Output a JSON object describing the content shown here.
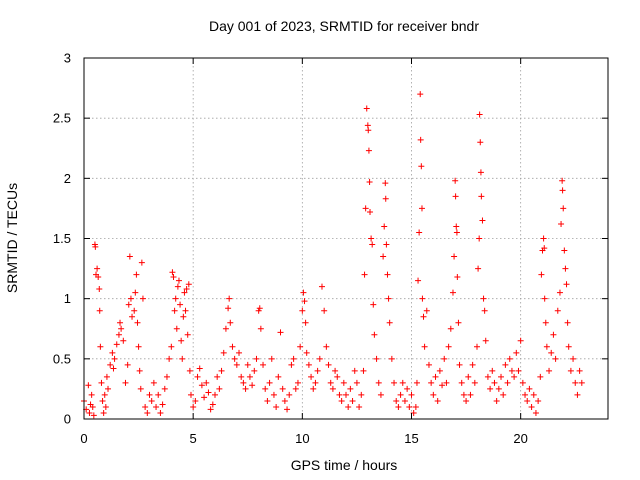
{
  "chart_data": {
    "type": "scatter",
    "title": "Day 001 of 2023, SRMTID for receiver bndr",
    "xlabel": "GPS time / hours",
    "ylabel": "SRMTID / TECUs",
    "xlim": [
      0,
      24
    ],
    "ylim": [
      0,
      3
    ],
    "x_ticks": [
      0,
      5,
      10,
      15,
      20
    ],
    "y_ticks": [
      0,
      0.5,
      1,
      1.5,
      2,
      2.5,
      3
    ],
    "x_tick_labels": [
      "0",
      "5",
      "10",
      "15",
      "20"
    ],
    "y_tick_labels": [
      "0",
      "0.5",
      "1",
      "1.5",
      "2",
      "2.5",
      "3"
    ],
    "grid": true,
    "marker": "+",
    "color": "#ff0000",
    "series": [
      {
        "name": "SRMTID",
        "points": [
          [
            0.0,
            0.15
          ],
          [
            0.1,
            0.08
          ],
          [
            0.2,
            0.28
          ],
          [
            0.25,
            0.05
          ],
          [
            0.3,
            0.12
          ],
          [
            0.35,
            0.2
          ],
          [
            0.4,
            0.1
          ],
          [
            0.45,
            0.03
          ],
          [
            0.5,
            1.45
          ],
          [
            0.52,
            1.43
          ],
          [
            0.55,
            1.2
          ],
          [
            0.6,
            1.25
          ],
          [
            0.65,
            1.18
          ],
          [
            0.7,
            1.08
          ],
          [
            0.72,
            0.9
          ],
          [
            0.75,
            0.6
          ],
          [
            0.8,
            0.3
          ],
          [
            0.85,
            0.15
          ],
          [
            0.9,
            0.05
          ],
          [
            0.95,
            0.2
          ],
          [
            1.0,
            0.1
          ],
          [
            1.05,
            0.35
          ],
          [
            1.1,
            0.25
          ],
          [
            1.2,
            0.45
          ],
          [
            1.3,
            0.55
          ],
          [
            1.35,
            0.42
          ],
          [
            1.4,
            0.5
          ],
          [
            1.5,
            0.62
          ],
          [
            1.6,
            0.7
          ],
          [
            1.65,
            0.8
          ],
          [
            1.7,
            0.75
          ],
          [
            1.8,
            0.65
          ],
          [
            1.9,
            0.3
          ],
          [
            2.0,
            0.45
          ],
          [
            2.05,
            0.95
          ],
          [
            2.1,
            1.35
          ],
          [
            2.15,
            1.0
          ],
          [
            2.2,
            0.85
          ],
          [
            2.3,
            0.9
          ],
          [
            2.35,
            1.05
          ],
          [
            2.4,
            1.2
          ],
          [
            2.45,
            0.8
          ],
          [
            2.5,
            0.6
          ],
          [
            2.55,
            0.4
          ],
          [
            2.6,
            0.25
          ],
          [
            2.65,
            1.3
          ],
          [
            2.7,
            1.0
          ],
          [
            2.8,
            0.1
          ],
          [
            2.9,
            0.05
          ],
          [
            3.0,
            0.2
          ],
          [
            3.1,
            0.15
          ],
          [
            3.2,
            0.3
          ],
          [
            3.3,
            0.1
          ],
          [
            3.4,
            0.2
          ],
          [
            3.5,
            0.05
          ],
          [
            3.6,
            0.12
          ],
          [
            3.7,
            0.25
          ],
          [
            3.8,
            0.35
          ],
          [
            3.9,
            0.5
          ],
          [
            4.0,
            0.6
          ],
          [
            4.05,
            1.22
          ],
          [
            4.1,
            1.18
          ],
          [
            4.15,
            0.9
          ],
          [
            4.2,
            1.0
          ],
          [
            4.25,
            0.75
          ],
          [
            4.3,
            1.1
          ],
          [
            4.35,
            1.15
          ],
          [
            4.4,
            0.95
          ],
          [
            4.45,
            0.65
          ],
          [
            4.5,
            0.5
          ],
          [
            4.55,
            0.85
          ],
          [
            4.6,
            1.05
          ],
          [
            4.65,
            0.9
          ],
          [
            4.7,
            1.08
          ],
          [
            4.75,
            0.7
          ],
          [
            4.8,
            1.12
          ],
          [
            4.85,
            0.4
          ],
          [
            4.9,
            0.2
          ],
          [
            5.0,
            0.1
          ],
          [
            5.1,
            0.15
          ],
          [
            5.2,
            0.35
          ],
          [
            5.3,
            0.42
          ],
          [
            5.4,
            0.28
          ],
          [
            5.5,
            0.18
          ],
          [
            5.6,
            0.3
          ],
          [
            5.7,
            0.22
          ],
          [
            5.8,
            0.08
          ],
          [
            5.9,
            0.12
          ],
          [
            6.0,
            0.2
          ],
          [
            6.1,
            0.35
          ],
          [
            6.2,
            0.25
          ],
          [
            6.3,
            0.4
          ],
          [
            6.4,
            0.55
          ],
          [
            6.5,
            0.75
          ],
          [
            6.6,
            0.92
          ],
          [
            6.65,
            1.0
          ],
          [
            6.7,
            0.8
          ],
          [
            6.8,
            0.6
          ],
          [
            6.9,
            0.5
          ],
          [
            7.0,
            0.45
          ],
          [
            7.1,
            0.55
          ],
          [
            7.2,
            0.35
          ],
          [
            7.3,
            0.3
          ],
          [
            7.4,
            0.25
          ],
          [
            7.5,
            0.45
          ],
          [
            7.6,
            0.35
          ],
          [
            7.7,
            0.28
          ],
          [
            7.8,
            0.4
          ],
          [
            7.9,
            0.5
          ],
          [
            8.0,
            0.9
          ],
          [
            8.05,
            0.92
          ],
          [
            8.1,
            0.75
          ],
          [
            8.2,
            0.45
          ],
          [
            8.3,
            0.25
          ],
          [
            8.4,
            0.15
          ],
          [
            8.5,
            0.3
          ],
          [
            8.6,
            0.5
          ],
          [
            8.7,
            0.2
          ],
          [
            8.8,
            0.1
          ],
          [
            8.9,
            0.35
          ],
          [
            9.0,
            0.72
          ],
          [
            9.1,
            0.25
          ],
          [
            9.2,
            0.15
          ],
          [
            9.3,
            0.08
          ],
          [
            9.4,
            0.2
          ],
          [
            9.5,
            0.45
          ],
          [
            9.6,
            0.5
          ],
          [
            9.7,
            0.25
          ],
          [
            9.8,
            0.3
          ],
          [
            9.9,
            0.6
          ],
          [
            10.0,
            0.9
          ],
          [
            10.05,
            1.05
          ],
          [
            10.1,
            0.98
          ],
          [
            10.15,
            0.8
          ],
          [
            10.2,
            0.55
          ],
          [
            10.3,
            0.45
          ],
          [
            10.4,
            0.35
          ],
          [
            10.5,
            0.25
          ],
          [
            10.6,
            0.3
          ],
          [
            10.7,
            0.4
          ],
          [
            10.8,
            0.5
          ],
          [
            10.9,
            1.1
          ],
          [
            11.0,
            0.9
          ],
          [
            11.1,
            0.6
          ],
          [
            11.2,
            0.45
          ],
          [
            11.3,
            0.3
          ],
          [
            11.4,
            0.25
          ],
          [
            11.5,
            0.4
          ],
          [
            11.6,
            0.35
          ],
          [
            11.7,
            0.2
          ],
          [
            11.8,
            0.15
          ],
          [
            11.9,
            0.3
          ],
          [
            12.0,
            0.2
          ],
          [
            12.1,
            0.1
          ],
          [
            12.2,
            0.25
          ],
          [
            12.3,
            0.15
          ],
          [
            12.4,
            0.4
          ],
          [
            12.5,
            0.3
          ],
          [
            12.6,
            0.1
          ],
          [
            12.7,
            0.2
          ],
          [
            12.8,
            0.4
          ],
          [
            12.85,
            1.2
          ],
          [
            12.9,
            1.75
          ],
          [
            12.95,
            2.58
          ],
          [
            13.0,
            2.44
          ],
          [
            13.02,
            2.4
          ],
          [
            13.05,
            2.23
          ],
          [
            13.08,
            1.97
          ],
          [
            13.1,
            1.72
          ],
          [
            13.15,
            1.5
          ],
          [
            13.2,
            1.45
          ],
          [
            13.25,
            0.95
          ],
          [
            13.3,
            0.7
          ],
          [
            13.4,
            0.5
          ],
          [
            13.5,
            0.3
          ],
          [
            13.6,
            0.2
          ],
          [
            13.7,
            1.35
          ],
          [
            13.75,
            1.6
          ],
          [
            13.8,
            1.96
          ],
          [
            13.82,
            1.83
          ],
          [
            13.85,
            1.45
          ],
          [
            13.9,
            1.2
          ],
          [
            13.95,
            1.0
          ],
          [
            14.0,
            0.8
          ],
          [
            14.1,
            0.5
          ],
          [
            14.2,
            0.3
          ],
          [
            14.3,
            0.15
          ],
          [
            14.4,
            0.1
          ],
          [
            14.5,
            0.2
          ],
          [
            14.6,
            0.3
          ],
          [
            14.7,
            0.15
          ],
          [
            14.8,
            0.25
          ],
          [
            14.9,
            0.1
          ],
          [
            15.0,
            0.2
          ],
          [
            15.1,
            0.05
          ],
          [
            15.2,
            0.1
          ],
          [
            15.25,
            0.3
          ],
          [
            15.3,
            1.15
          ],
          [
            15.35,
            1.55
          ],
          [
            15.4,
            2.7
          ],
          [
            15.42,
            2.32
          ],
          [
            15.45,
            2.1
          ],
          [
            15.48,
            1.75
          ],
          [
            15.5,
            1.0
          ],
          [
            15.55,
            0.85
          ],
          [
            15.6,
            0.6
          ],
          [
            15.7,
            0.9
          ],
          [
            15.8,
            0.45
          ],
          [
            15.9,
            0.3
          ],
          [
            16.0,
            0.2
          ],
          [
            16.1,
            0.35
          ],
          [
            16.2,
            0.15
          ],
          [
            16.3,
            0.4
          ],
          [
            16.4,
            0.28
          ],
          [
            16.5,
            0.5
          ],
          [
            16.6,
            0.3
          ],
          [
            16.7,
            0.6
          ],
          [
            16.8,
            0.75
          ],
          [
            16.9,
            1.05
          ],
          [
            16.95,
            1.35
          ],
          [
            17.0,
            1.98
          ],
          [
            17.02,
            1.85
          ],
          [
            17.05,
            1.6
          ],
          [
            17.08,
            1.55
          ],
          [
            17.1,
            1.18
          ],
          [
            17.15,
            0.8
          ],
          [
            17.2,
            0.45
          ],
          [
            17.3,
            0.3
          ],
          [
            17.4,
            0.2
          ],
          [
            17.5,
            0.15
          ],
          [
            17.6,
            0.35
          ],
          [
            17.7,
            0.2
          ],
          [
            17.8,
            0.45
          ],
          [
            17.9,
            0.3
          ],
          [
            18.0,
            0.6
          ],
          [
            18.05,
            1.25
          ],
          [
            18.1,
            1.5
          ],
          [
            18.12,
            2.53
          ],
          [
            18.15,
            2.3
          ],
          [
            18.18,
            2.05
          ],
          [
            18.2,
            1.85
          ],
          [
            18.25,
            1.65
          ],
          [
            18.3,
            1.0
          ],
          [
            18.35,
            0.9
          ],
          [
            18.4,
            0.65
          ],
          [
            18.5,
            0.35
          ],
          [
            18.6,
            0.25
          ],
          [
            18.7,
            0.4
          ],
          [
            18.8,
            0.3
          ],
          [
            18.9,
            0.15
          ],
          [
            19.0,
            0.25
          ],
          [
            19.1,
            0.35
          ],
          [
            19.2,
            0.2
          ],
          [
            19.3,
            0.45
          ],
          [
            19.4,
            0.3
          ],
          [
            19.5,
            0.5
          ],
          [
            19.6,
            0.4
          ],
          [
            19.7,
            0.35
          ],
          [
            19.8,
            0.55
          ],
          [
            19.9,
            0.4
          ],
          [
            20.0,
            0.65
          ],
          [
            20.1,
            0.3
          ],
          [
            20.2,
            0.2
          ],
          [
            20.3,
            0.15
          ],
          [
            20.4,
            0.25
          ],
          [
            20.5,
            0.1
          ],
          [
            20.6,
            0.2
          ],
          [
            20.7,
            0.05
          ],
          [
            20.8,
            0.15
          ],
          [
            20.9,
            0.35
          ],
          [
            20.95,
            1.2
          ],
          [
            21.0,
            1.4
          ],
          [
            21.05,
            1.5
          ],
          [
            21.08,
            1.42
          ],
          [
            21.1,
            1.0
          ],
          [
            21.15,
            0.8
          ],
          [
            21.2,
            0.6
          ],
          [
            21.3,
            0.4
          ],
          [
            21.4,
            0.55
          ],
          [
            21.5,
            0.7
          ],
          [
            21.6,
            0.5
          ],
          [
            21.7,
            0.9
          ],
          [
            21.8,
            1.05
          ],
          [
            21.85,
            1.62
          ],
          [
            21.9,
            1.98
          ],
          [
            21.92,
            1.9
          ],
          [
            21.95,
            1.75
          ],
          [
            22.0,
            1.4
          ],
          [
            22.05,
            1.25
          ],
          [
            22.1,
            1.12
          ],
          [
            22.15,
            0.8
          ],
          [
            22.2,
            0.6
          ],
          [
            22.3,
            0.4
          ],
          [
            22.4,
            0.5
          ],
          [
            22.5,
            0.3
          ],
          [
            22.6,
            0.2
          ],
          [
            22.7,
            0.4
          ],
          [
            22.8,
            0.3
          ]
        ]
      }
    ]
  }
}
